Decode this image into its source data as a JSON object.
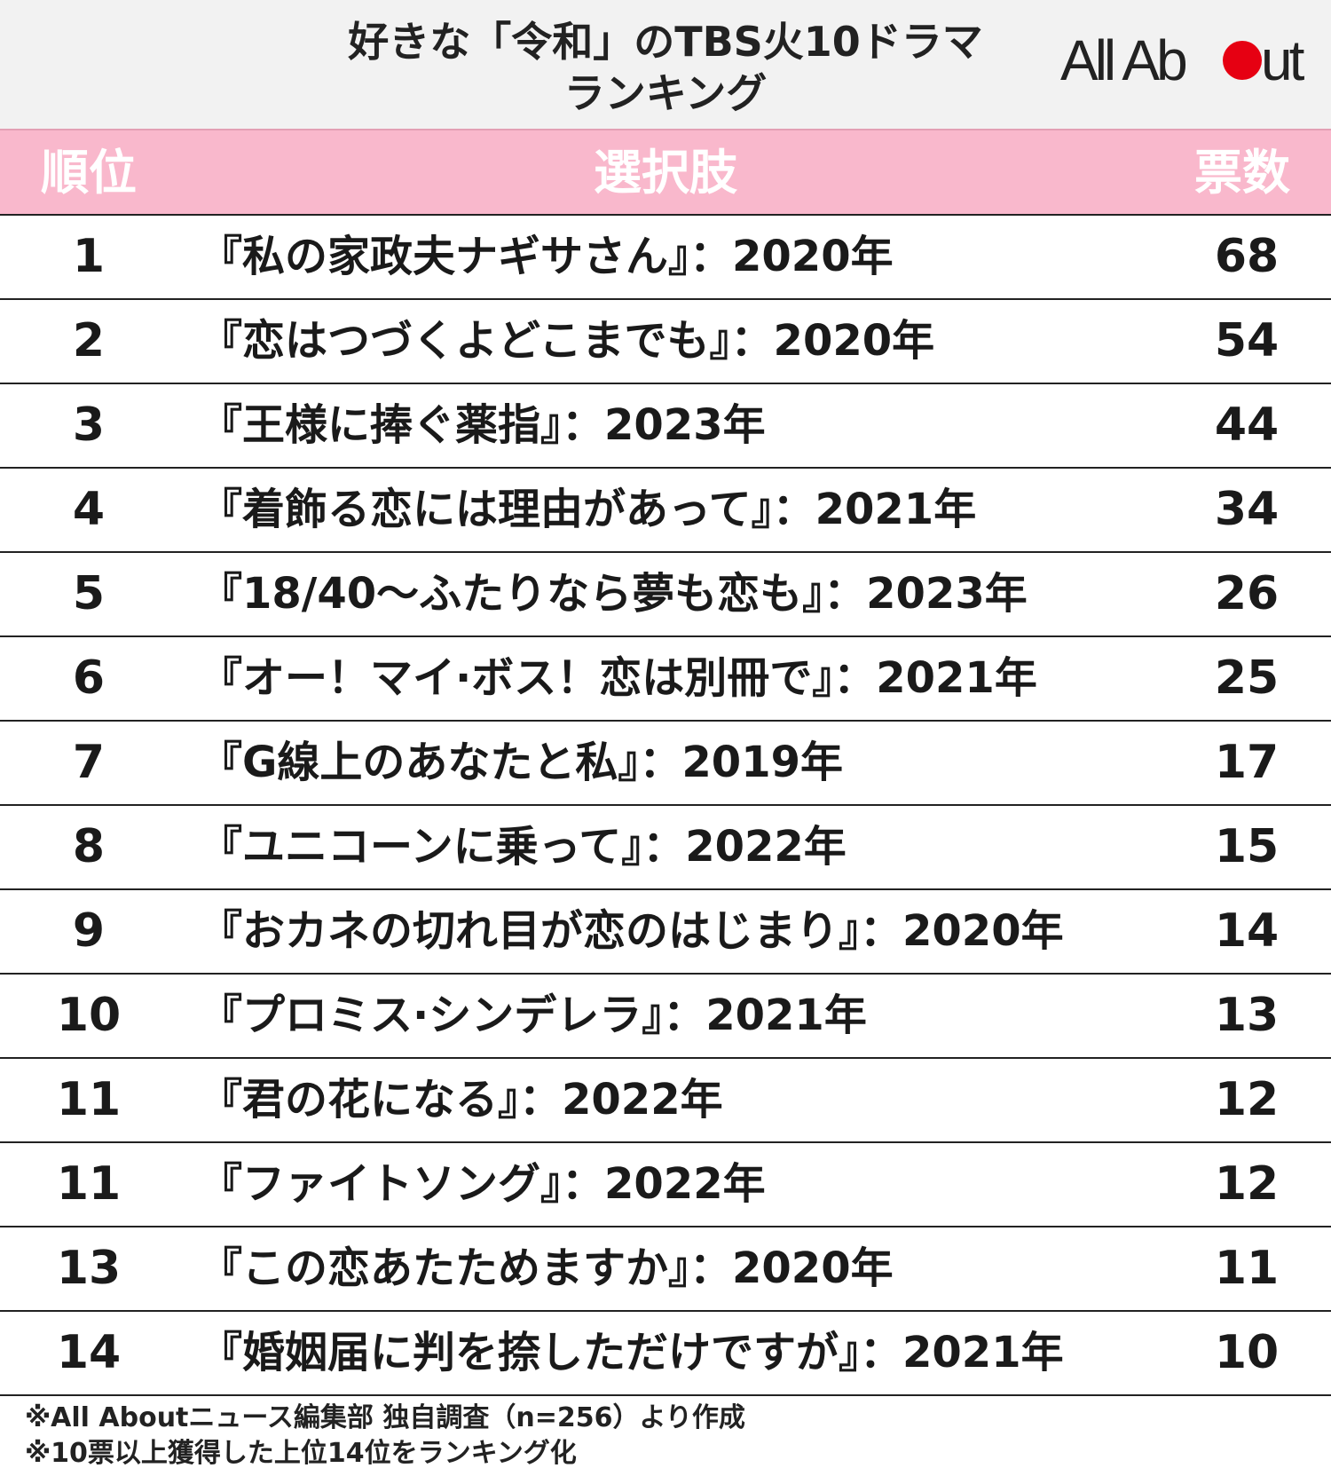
{
  "header": {
    "title_line1": "好きな「令和」のTBS火10ドラマ",
    "title_line2": "ランキング",
    "logo_text": "All About",
    "logo_dot_color": "#e60012"
  },
  "table": {
    "col_rank": "順位",
    "col_choice": "選択肢",
    "col_votes": "票数"
  },
  "chart_data": {
    "type": "table",
    "columns": [
      "順位",
      "選択肢",
      "票数"
    ],
    "rows": [
      {
        "rank": "1",
        "choice": "『私の家政夫ナギサさん』：2020年",
        "votes": 68
      },
      {
        "rank": "2",
        "choice": "『恋はつづくよどこまでも』：2020年",
        "votes": 54
      },
      {
        "rank": "3",
        "choice": "『王様に捧ぐ薬指』：2023年",
        "votes": 44
      },
      {
        "rank": "4",
        "choice": "『着飾る恋には理由があって』：2021年",
        "votes": 34
      },
      {
        "rank": "5",
        "choice": "『18/40～ふたりなら夢も恋も』：2023年",
        "votes": 26
      },
      {
        "rank": "6",
        "choice": "『オー！マイ·ボス！恋は別冊で』：2021年",
        "votes": 25
      },
      {
        "rank": "7",
        "choice": "『G線上のあなたと私』：2019年",
        "votes": 17
      },
      {
        "rank": "8",
        "choice": "『ユニコーンに乗って』：2022年",
        "votes": 15
      },
      {
        "rank": "9",
        "choice": "『おカネの切れ目が恋のはじまり』：2020年",
        "votes": 14
      },
      {
        "rank": "10",
        "choice": "『プロミス·シンデレラ』：2021年",
        "votes": 13
      },
      {
        "rank": "11",
        "choice": "『君の花になる』：2022年",
        "votes": 12
      },
      {
        "rank": "11",
        "choice": "『ファイトソング』：2022年",
        "votes": 12
      },
      {
        "rank": "13",
        "choice": "『この恋あたためますか』：2020年",
        "votes": 11
      },
      {
        "rank": "14",
        "choice": "『婚姻届に判を捺しただけですが』：2021年",
        "votes": 10
      }
    ]
  },
  "footer": {
    "note1": "※All Aboutニュース編集部 独自調査（n=256）より作成",
    "note2": "※10票以上獲得した上位14位をランキング化"
  },
  "colors": {
    "header_bg": "#f2f2f2",
    "table_head_bg": "#f9b8cc",
    "table_head_text": "#ffffff"
  }
}
